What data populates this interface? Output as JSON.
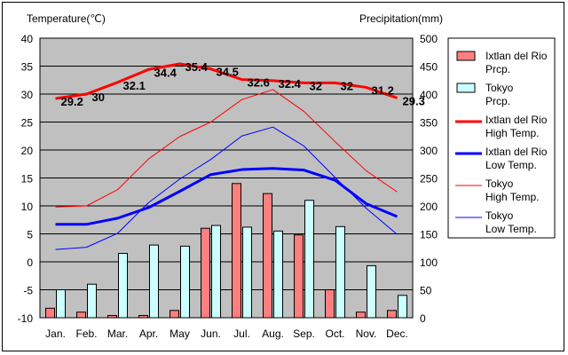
{
  "chart_data": {
    "type": "bar",
    "categories": [
      "Jan.",
      "Feb.",
      "Mar.",
      "Apr.",
      "May",
      "Jun.",
      "Jul.",
      "Aug.",
      "Sep.",
      "Oct.",
      "Nov.",
      "Dec."
    ],
    "left_axis": {
      "label": "Temperature(℃)",
      "range": [
        -10,
        40
      ],
      "ticks": [
        40,
        35,
        30,
        25,
        20,
        15,
        10,
        5,
        0,
        -5,
        -10
      ]
    },
    "right_axis": {
      "label": "Precipitation(mm)",
      "range": [
        0,
        500
      ],
      "ticks": [
        500,
        450,
        400,
        350,
        300,
        250,
        200,
        150,
        100,
        50,
        0
      ]
    },
    "grid": true,
    "legend_position": "right",
    "bar_series": [
      {
        "name": "Ixtlan del Rio Prcp.",
        "legend": [
          "Ixtlan del Rio",
          "Prcp."
        ],
        "color": "#ff7f7f",
        "values": [
          17,
          10,
          4,
          4,
          13,
          160,
          240,
          222,
          148,
          50,
          10,
          13
        ]
      },
      {
        "name": "Tokyo Prcp.",
        "legend": [
          "Tokyo",
          "Prcp."
        ],
        "color": "#ccffff",
        "values": [
          50,
          60,
          115,
          130,
          128,
          165,
          162,
          155,
          210,
          163,
          93,
          40
        ]
      }
    ],
    "line_series": [
      {
        "name": "Ixtlan del Rio High Temp.",
        "legend": [
          "Ixtlan del Rio",
          "High Temp."
        ],
        "color": "#ff0000",
        "width": 3,
        "values": [
          29.2,
          30,
          32.1,
          34.4,
          35.4,
          34.5,
          32.6,
          32.4,
          32,
          32,
          31.2,
          29.3
        ],
        "labels": [
          "29.2",
          "30",
          "32.1",
          "34.4",
          "35.4",
          "34.5",
          "32.6",
          "32.4",
          "32",
          "32",
          "31.2",
          "29.3"
        ]
      },
      {
        "name": "Ixtlan del Rio Low Temp.",
        "legend": [
          "Ixtlan del Rio",
          "Low Temp."
        ],
        "color": "#0000ff",
        "width": 3,
        "values": [
          6.7,
          6.7,
          7.8,
          9.7,
          12.6,
          15.6,
          16.5,
          16.7,
          16.4,
          14.6,
          10.4,
          8.1
        ]
      },
      {
        "name": "Tokyo High Temp.",
        "legend": [
          "Tokyo",
          "High Temp."
        ],
        "color": "#ff0000",
        "width": 1,
        "values": [
          9.8,
          10,
          12.9,
          18.4,
          22.4,
          25,
          29,
          30.8,
          26.9,
          21.5,
          16.3,
          12.5
        ]
      },
      {
        "name": "Tokyo Low Temp.",
        "legend": [
          "Tokyo",
          "Low Temp."
        ],
        "color": "#0000ff",
        "width": 1,
        "values": [
          2.2,
          2.6,
          5.1,
          10.6,
          14.8,
          18.3,
          22.5,
          24.1,
          20.7,
          15.1,
          9.6,
          4.9
        ]
      }
    ]
  }
}
